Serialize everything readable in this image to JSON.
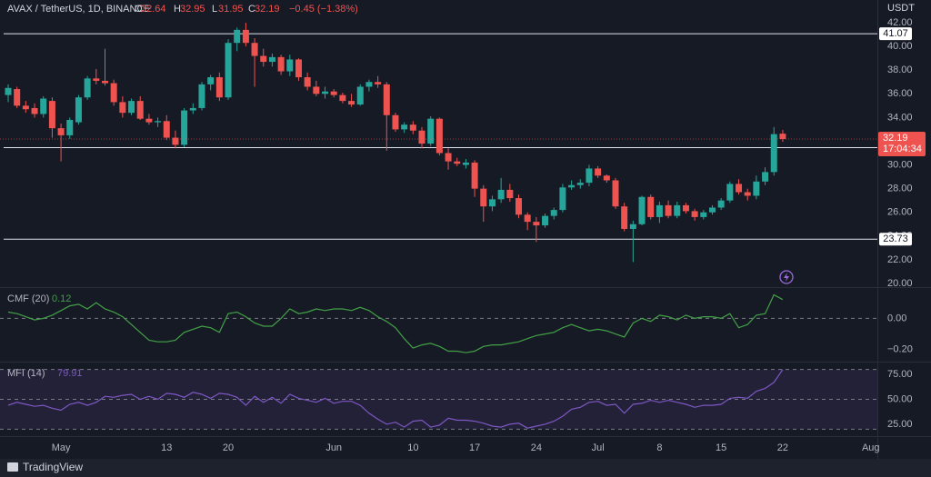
{
  "chart_data": [
    {
      "type": "candlestick",
      "title": "AVAX / TetherUS, 1D, BINANCE",
      "ohlc_letters": [
        "O",
        "H",
        "L",
        "C"
      ],
      "change_label": "−0.45 (−1.38%)",
      "y_label": "USDT",
      "countdown": "17:04:34",
      "up_color": "#26a69a",
      "down_color": "#ef5350",
      "xlim": [
        -0.93,
        98.75
      ],
      "xticks": [
        {
          "value": 6,
          "label": "May"
        },
        {
          "value": 18,
          "label": "13"
        },
        {
          "value": 25,
          "label": "20"
        },
        {
          "value": 37,
          "label": "Jun"
        },
        {
          "value": 46,
          "label": "10"
        },
        {
          "value": 53,
          "label": "17"
        },
        {
          "value": 60,
          "label": "24"
        },
        {
          "value": 67,
          "label": "Jul"
        },
        {
          "value": 74,
          "label": "8"
        },
        {
          "value": 81,
          "label": "15"
        },
        {
          "value": 88,
          "label": "22"
        },
        {
          "value": 98,
          "label": "Aug"
        }
      ],
      "ylim": [
        19.69,
        43.92
      ],
      "yticks": [
        {
          "value": 20,
          "label": "20.00"
        },
        {
          "value": 22,
          "label": "22.00"
        },
        {
          "value": 24,
          "label": "24.00"
        },
        {
          "value": 26,
          "label": "26.00"
        },
        {
          "value": 28,
          "label": "28.00"
        },
        {
          "value": 30,
          "label": "30.00"
        },
        {
          "value": 32,
          "label": "32.00"
        },
        {
          "value": 34,
          "label": "34.00"
        },
        {
          "value": 36,
          "label": "36.00"
        },
        {
          "value": 38,
          "label": "38.00"
        },
        {
          "value": 40,
          "label": "40.00"
        },
        {
          "value": 42,
          "label": "42.00"
        }
      ],
      "levels": [
        41.07,
        31.46,
        23.73
      ],
      "ohlc": [
        [
          35.9,
          36.8,
          35.3,
          36.5
        ],
        [
          36.4,
          36.6,
          34.8,
          35.0
        ],
        [
          35.0,
          35.4,
          34.4,
          34.7
        ],
        [
          34.8,
          35.2,
          34.0,
          34.3
        ],
        [
          34.3,
          35.8,
          34.0,
          35.6
        ],
        [
          35.4,
          35.7,
          32.3,
          33.1
        ],
        [
          33.1,
          33.5,
          30.3,
          32.5
        ],
        [
          32.5,
          34.0,
          32.2,
          33.8
        ],
        [
          33.6,
          35.9,
          33.4,
          35.7
        ],
        [
          35.7,
          37.5,
          35.5,
          37.3
        ],
        [
          37.3,
          38.1,
          36.8,
          37.1
        ],
        [
          37.1,
          39.8,
          36.7,
          36.9
        ],
        [
          36.9,
          37.2,
          35.0,
          35.3
        ],
        [
          35.3,
          35.8,
          34.0,
          34.4
        ],
        [
          34.4,
          35.6,
          34.2,
          35.4
        ],
        [
          35.4,
          35.8,
          33.8,
          33.9
        ],
        [
          33.9,
          34.3,
          33.4,
          33.6
        ],
        [
          33.6,
          34.0,
          33.2,
          33.7
        ],
        [
          33.7,
          34.2,
          32.1,
          32.3
        ],
        [
          32.3,
          32.9,
          31.4,
          31.7
        ],
        [
          31.7,
          34.8,
          31.5,
          34.6
        ],
        [
          34.6,
          35.2,
          34.3,
          34.8
        ],
        [
          34.8,
          37.0,
          34.6,
          36.8
        ],
        [
          36.8,
          37.6,
          36.3,
          37.4
        ],
        [
          37.4,
          37.8,
          35.4,
          35.7
        ],
        [
          35.7,
          40.6,
          35.5,
          40.3
        ],
        [
          40.3,
          41.6,
          39.6,
          41.4
        ],
        [
          41.4,
          42.0,
          40.0,
          40.3
        ],
        [
          40.3,
          40.7,
          36.6,
          39.2
        ],
        [
          39.2,
          39.8,
          38.3,
          38.7
        ],
        [
          38.7,
          39.4,
          38.3,
          39.1
        ],
        [
          39.1,
          39.3,
          37.6,
          37.9
        ],
        [
          37.9,
          39.3,
          37.5,
          38.9
        ],
        [
          38.9,
          39.0,
          37.1,
          37.4
        ],
        [
          37.4,
          37.8,
          36.3,
          36.6
        ],
        [
          36.6,
          37.1,
          35.8,
          36.0
        ],
        [
          36.0,
          36.6,
          35.6,
          36.2
        ],
        [
          36.2,
          36.4,
          35.7,
          35.9
        ],
        [
          35.9,
          36.1,
          35.2,
          35.4
        ],
        [
          35.4,
          36.0,
          34.9,
          35.1
        ],
        [
          35.1,
          36.8,
          35.0,
          36.6
        ],
        [
          36.6,
          37.2,
          36.2,
          37.0
        ],
        [
          37.0,
          37.5,
          36.5,
          36.8
        ],
        [
          36.8,
          37.0,
          31.2,
          34.2
        ],
        [
          34.2,
          34.4,
          32.8,
          33.0
        ],
        [
          33.0,
          33.6,
          32.7,
          33.4
        ],
        [
          33.4,
          33.7,
          32.6,
          32.9
        ],
        [
          32.9,
          33.2,
          31.4,
          31.8
        ],
        [
          31.8,
          34.1,
          31.6,
          33.9
        ],
        [
          33.9,
          34.0,
          30.8,
          31.0
        ],
        [
          31.0,
          31.4,
          29.6,
          30.3
        ],
        [
          30.3,
          30.6,
          29.9,
          30.1
        ],
        [
          30.0,
          30.5,
          29.7,
          30.2
        ],
        [
          30.2,
          30.4,
          27.3,
          28.0
        ],
        [
          28.0,
          28.3,
          25.2,
          26.5
        ],
        [
          26.5,
          27.4,
          26.1,
          27.1
        ],
        [
          27.1,
          28.9,
          26.8,
          27.9
        ],
        [
          27.9,
          28.4,
          26.9,
          27.2
        ],
        [
          27.2,
          27.5,
          25.5,
          25.8
        ],
        [
          25.8,
          26.0,
          24.5,
          25.2
        ],
        [
          25.2,
          25.6,
          23.5,
          24.9
        ],
        [
          24.9,
          25.9,
          24.7,
          25.7
        ],
        [
          25.7,
          26.4,
          25.4,
          26.2
        ],
        [
          26.2,
          28.4,
          26.0,
          28.1
        ],
        [
          28.1,
          28.7,
          27.9,
          28.3
        ],
        [
          28.3,
          28.8,
          28.0,
          28.5
        ],
        [
          28.5,
          30.0,
          28.2,
          29.7
        ],
        [
          29.7,
          29.9,
          28.9,
          29.1
        ],
        [
          29.1,
          29.2,
          28.5,
          28.7
        ],
        [
          28.7,
          28.9,
          26.3,
          26.5
        ],
        [
          26.5,
          26.8,
          24.4,
          24.6
        ],
        [
          24.6,
          25.3,
          21.8,
          25.0
        ],
        [
          25.0,
          27.4,
          24.9,
          27.3
        ],
        [
          27.3,
          27.5,
          25.4,
          25.6
        ],
        [
          25.6,
          26.9,
          25.1,
          26.6
        ],
        [
          26.6,
          27.0,
          25.5,
          25.7
        ],
        [
          25.7,
          26.9,
          25.5,
          26.6
        ],
        [
          26.6,
          26.8,
          25.9,
          26.1
        ],
        [
          26.1,
          26.3,
          25.3,
          25.6
        ],
        [
          25.6,
          26.2,
          25.4,
          26.0
        ],
        [
          26.0,
          26.6,
          25.8,
          26.4
        ],
        [
          26.4,
          27.2,
          26.2,
          27.0
        ],
        [
          27.0,
          28.6,
          26.8,
          28.4
        ],
        [
          28.4,
          28.8,
          27.5,
          27.7
        ],
        [
          27.7,
          28.0,
          27.0,
          27.4
        ],
        [
          27.4,
          29.1,
          27.1,
          28.6
        ],
        [
          28.6,
          29.8,
          28.3,
          29.4
        ],
        [
          29.4,
          33.2,
          29.1,
          32.6
        ],
        [
          32.64,
          32.95,
          31.95,
          32.19
        ]
      ]
    },
    {
      "type": "line",
      "title": "CMF (20)",
      "color": "#43a047",
      "ylim": [
        -0.271,
        0.188
      ],
      "yticks": [
        {
          "value": 0,
          "label": "0.00"
        },
        {
          "value": -0.2,
          "label": "−0.20"
        }
      ],
      "hlines": [
        0
      ],
      "values": [
        0.04,
        0.03,
        0.01,
        -0.01,
        0.0,
        0.02,
        0.05,
        0.08,
        0.09,
        0.06,
        0.1,
        0.06,
        0.04,
        0.01,
        -0.04,
        -0.09,
        -0.14,
        -0.15,
        -0.15,
        -0.14,
        -0.09,
        -0.07,
        -0.05,
        -0.06,
        -0.09,
        0.03,
        0.04,
        0.01,
        -0.03,
        -0.05,
        -0.05,
        0.0,
        0.06,
        0.03,
        0.04,
        0.06,
        0.05,
        0.06,
        0.06,
        0.05,
        0.07,
        0.05,
        0.01,
        -0.02,
        -0.06,
        -0.13,
        -0.19,
        -0.17,
        -0.16,
        -0.18,
        -0.21,
        -0.21,
        -0.22,
        -0.21,
        -0.18,
        -0.17,
        -0.17,
        -0.16,
        -0.15,
        -0.13,
        -0.11,
        -0.1,
        -0.09,
        -0.06,
        -0.04,
        -0.06,
        -0.08,
        -0.07,
        -0.08,
        -0.1,
        -0.12,
        -0.03,
        0.0,
        -0.02,
        0.02,
        0.01,
        -0.01,
        0.02,
        0.0,
        0.01,
        0.01,
        0.0,
        0.03,
        -0.06,
        -0.04,
        0.02,
        0.03,
        0.15,
        0.12
      ]
    },
    {
      "type": "line",
      "title": "MFI (14)",
      "color": "#7e57c2",
      "ylim": [
        13.9,
        86.1
      ],
      "yticks": [
        {
          "value": 25,
          "label": "25.00"
        },
        {
          "value": 50,
          "label": "50.00"
        },
        {
          "value": 75,
          "label": "75.00"
        }
      ],
      "band": [
        20,
        80
      ],
      "hlines": [
        50
      ],
      "values": [
        44,
        47,
        45,
        43,
        44,
        41,
        39,
        45,
        47,
        44,
        47,
        53,
        52,
        54,
        55,
        50,
        53,
        50,
        56,
        55,
        52,
        57,
        55,
        51,
        56,
        55,
        52,
        44,
        53,
        47,
        52,
        46,
        55,
        51,
        49,
        47,
        51,
        46,
        48,
        48,
        44,
        36,
        30,
        25,
        27,
        22,
        28,
        29,
        22,
        24,
        31,
        29,
        29,
        28,
        26,
        23,
        22,
        25,
        26,
        21,
        23,
        25,
        28,
        33,
        40,
        42,
        47,
        48,
        44,
        45,
        36,
        45,
        46,
        49,
        47,
        49,
        47,
        45,
        42,
        44,
        44,
        45,
        51,
        52,
        51,
        58,
        61,
        67,
        79.91
      ]
    }
  ],
  "footer": {
    "brand": "TradingView"
  }
}
